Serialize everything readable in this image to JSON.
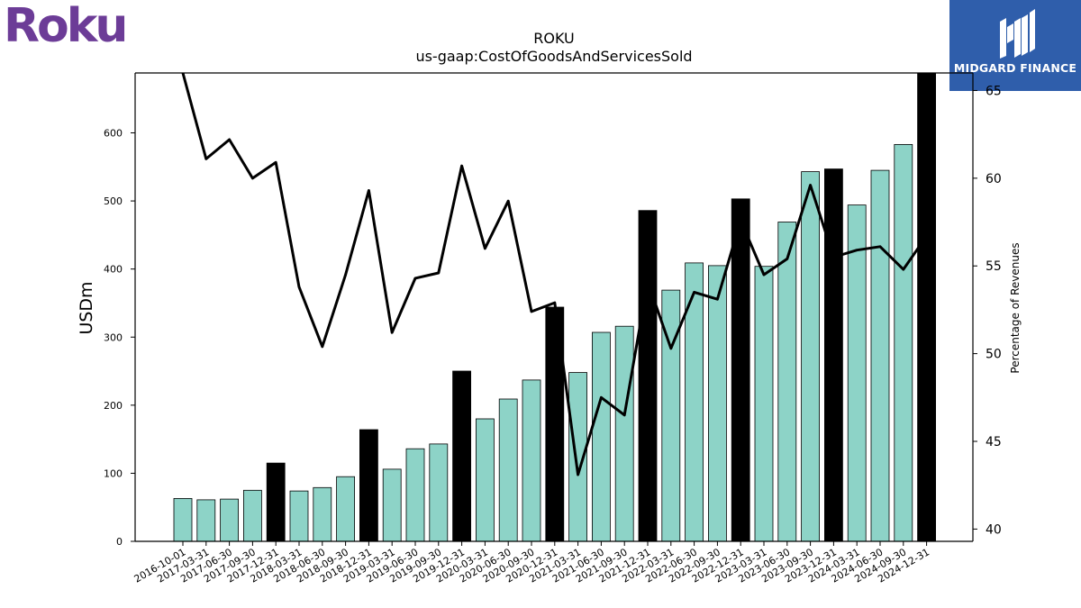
{
  "logo_left": {
    "text": "Roku",
    "color": "#6c3c97"
  },
  "logo_right": {
    "text": "MIDGARD FINANCE",
    "bg": "#2f5eab"
  },
  "chart_data": {
    "type": "bar",
    "title": "ROKU",
    "subtitle": "us-gaap:CostOfGoodsAndServicesSold",
    "ylabel": "USDm",
    "y2label": "Percentage of Revenues",
    "ylim": [
      0,
      688
    ],
    "y2lim": [
      39.3,
      66
    ],
    "yticks": [
      0,
      100,
      200,
      300,
      400,
      500,
      600
    ],
    "y2ticks": [
      40,
      45,
      50,
      55,
      60,
      65
    ],
    "bar_color": "#8dd3c7",
    "highlight_color": "#000000",
    "line_color": "#000000",
    "categories": [
      "2016-10-01",
      "2017-03-31",
      "2017-06-30",
      "2017-09-30",
      "2017-12-31",
      "2018-03-31",
      "2018-06-30",
      "2018-09-30",
      "2018-12-31",
      "2019-03-31",
      "2019-06-30",
      "2019-09-30",
      "2019-12-31",
      "2020-03-31",
      "2020-06-30",
      "2020-09-30",
      "2020-12-31",
      "2021-03-31",
      "2021-06-30",
      "2021-09-30",
      "2021-12-31",
      "2022-03-31",
      "2022-06-30",
      "2022-09-30",
      "2022-12-31",
      "2023-03-31",
      "2023-06-30",
      "2023-09-30",
      "2023-12-31",
      "2024-03-31",
      "2024-06-30",
      "2024-09-30",
      "2024-12-31"
    ],
    "series": [
      {
        "type": "bar",
        "values": [
          63,
          61,
          62,
          75,
          115,
          74,
          79,
          95,
          164,
          106,
          136,
          143,
          250,
          180,
          209,
          237,
          344,
          248,
          307,
          316,
          486,
          369,
          409,
          405,
          503,
          404,
          469,
          543,
          547,
          494,
          545,
          583,
          688
        ]
      },
      {
        "type": "line",
        "values": [
          66,
          61.1,
          62.2,
          60,
          60.9,
          53.8,
          50.4,
          54.5,
          59.3,
          51.2,
          54.3,
          54.6,
          60.7,
          56,
          58.7,
          52.4,
          52.9,
          43.1,
          47.5,
          46.5,
          54.1,
          50.3,
          53.5,
          53.1,
          57.6,
          54.5,
          55.4,
          59.6,
          55.5,
          55.9,
          56.1,
          54.8,
          56.7
        ]
      }
    ],
    "highlight_indices": [
      4,
      8,
      12,
      16,
      20,
      24,
      28,
      32
    ],
    "grid": false
  }
}
